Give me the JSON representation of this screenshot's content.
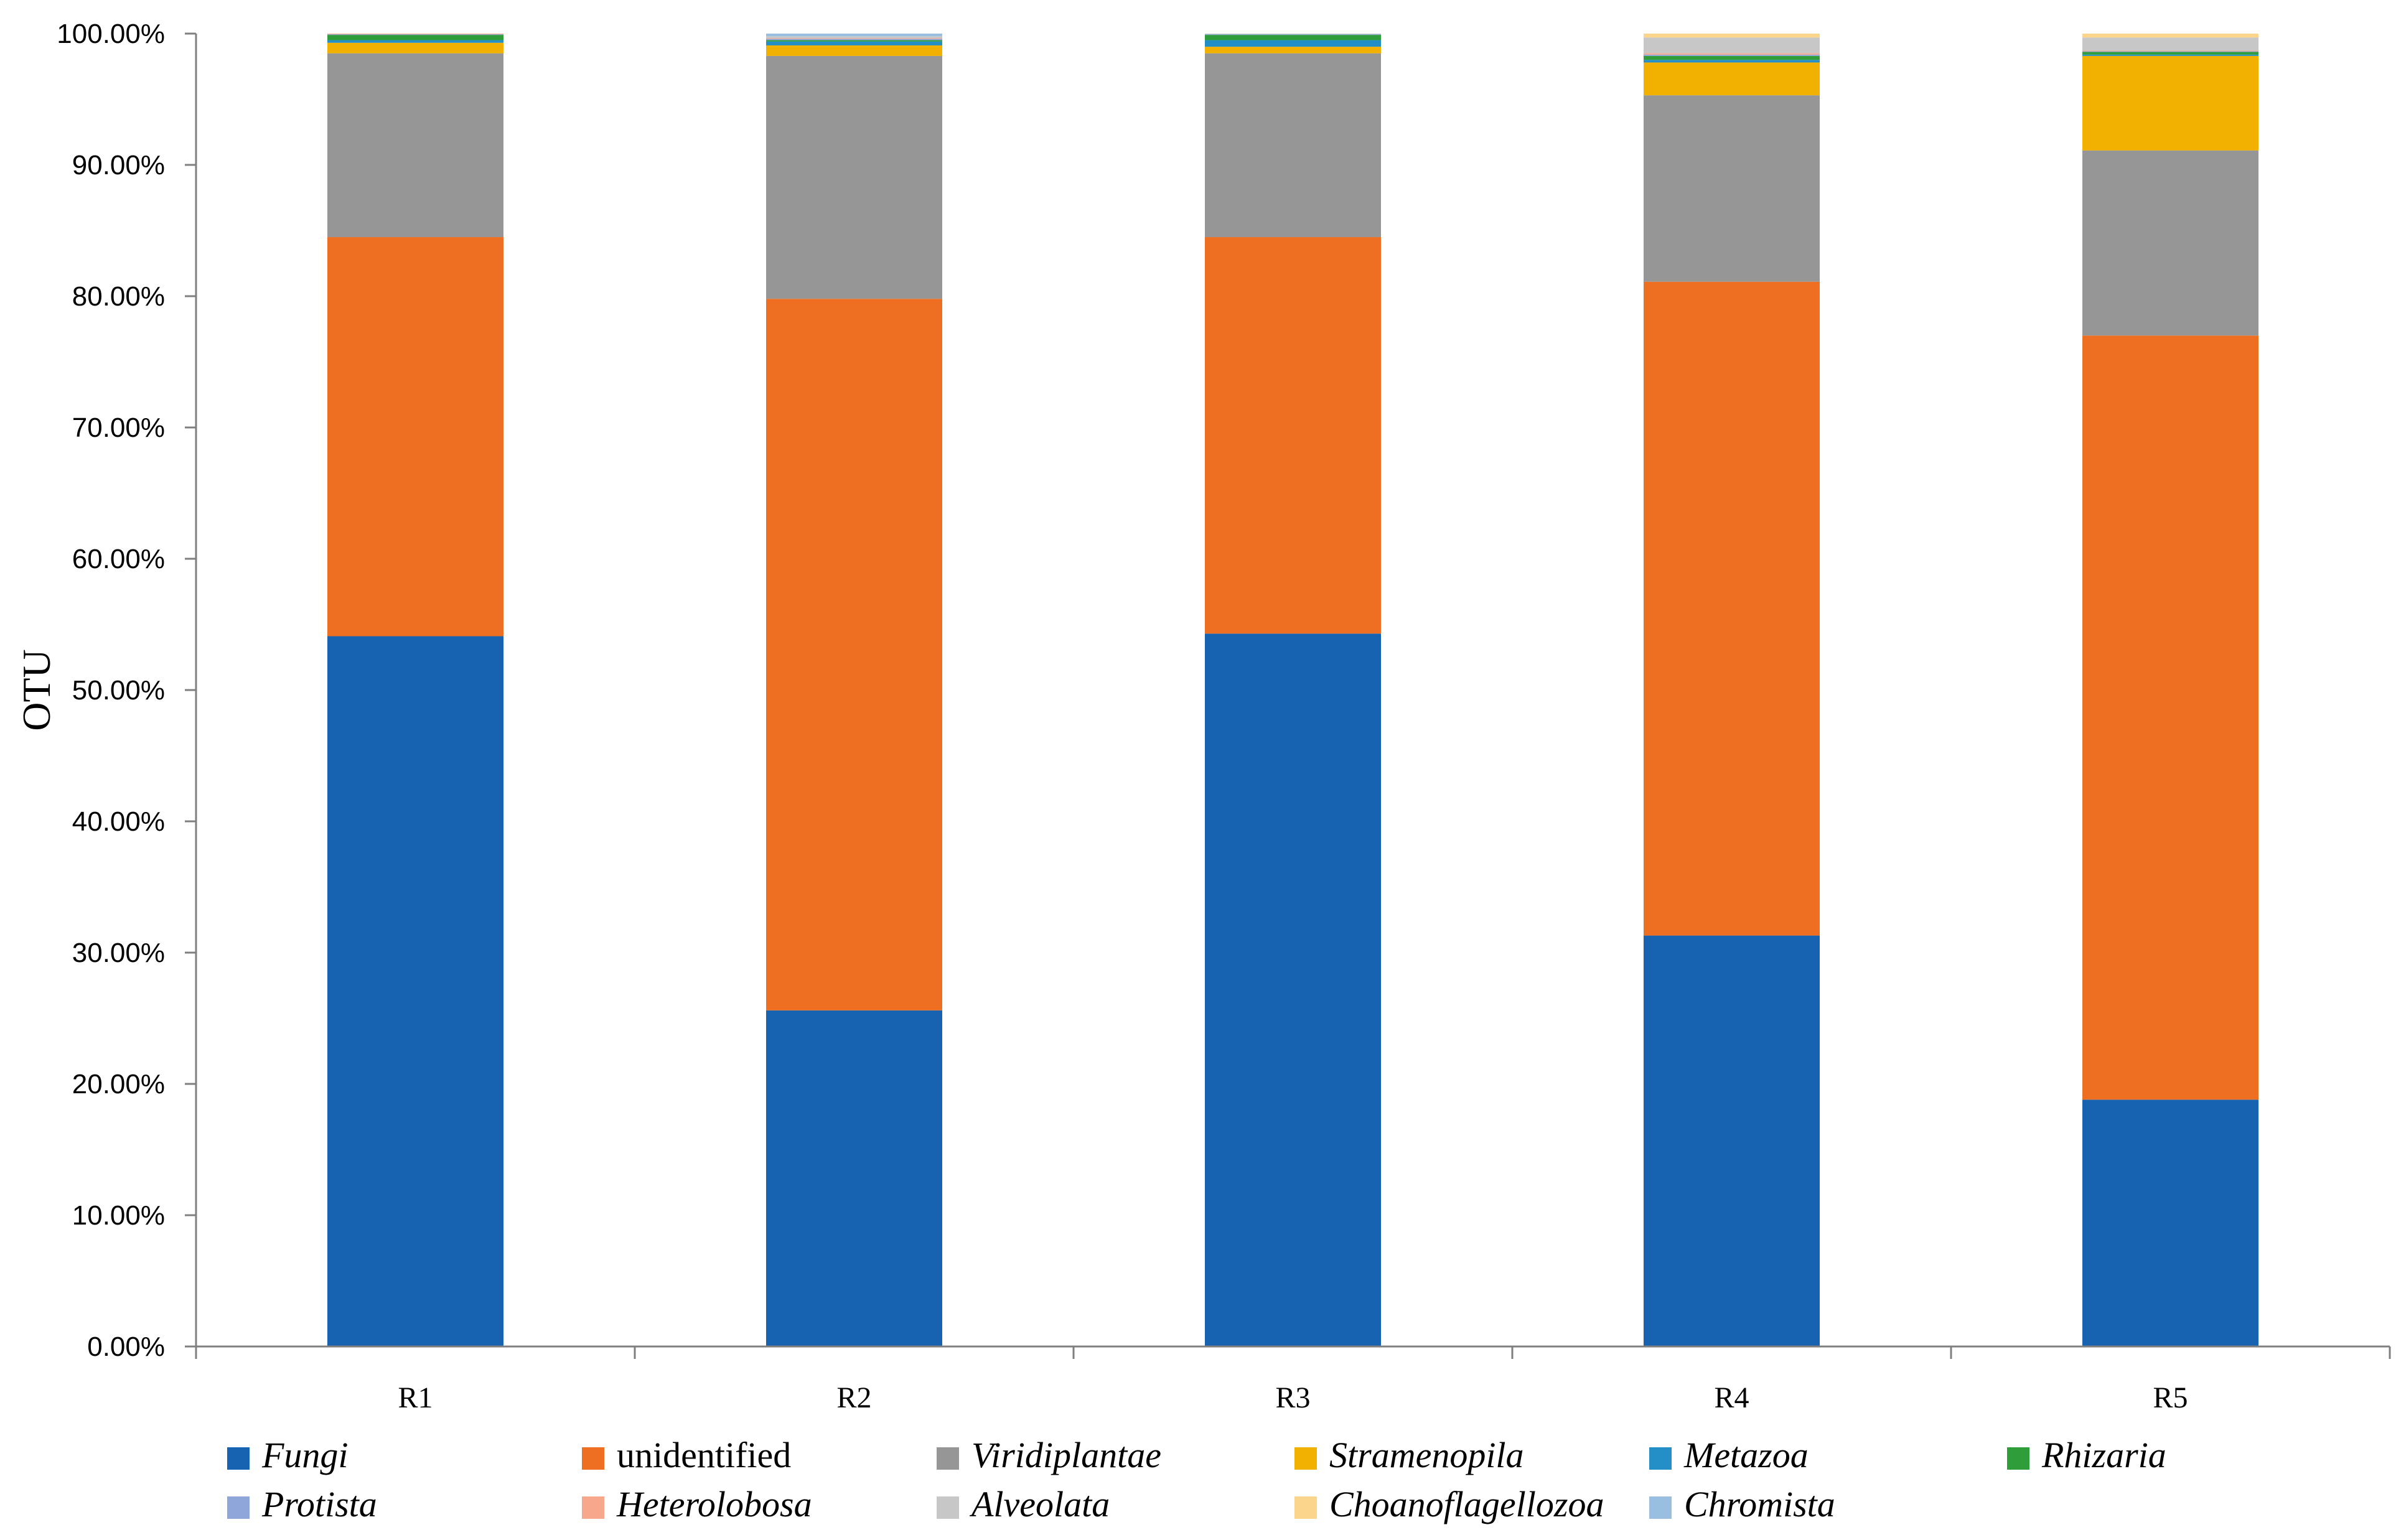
{
  "chart_data": {
    "type": "bar",
    "stacked": true,
    "categories": [
      "R1",
      "R2",
      "R3",
      "R4",
      "R5"
    ],
    "ylabel": "OTU",
    "xlabel": "",
    "title": "",
    "ylim": [
      0,
      100
    ],
    "ytick_labels": [
      "0.00%",
      "10.00%",
      "20.00%",
      "30.00%",
      "40.00%",
      "50.00%",
      "60.00%",
      "70.00%",
      "80.00%",
      "90.00%",
      "100.00%"
    ],
    "grid": false,
    "legend_position": "bottom",
    "series": [
      {
        "name": "Fungi",
        "italic": true,
        "color": "#1763B1",
        "values": [
          54.1,
          25.6,
          54.3,
          31.3,
          18.8
        ]
      },
      {
        "name": "unidentified",
        "italic": false,
        "color": "#EE6F21",
        "values": [
          30.4,
          54.2,
          30.2,
          49.8,
          58.2
        ]
      },
      {
        "name": "Viridiplantae",
        "italic": true,
        "color": "#969696",
        "values": [
          14.0,
          18.5,
          14.0,
          14.2,
          14.1
        ]
      },
      {
        "name": "Stramenopila",
        "italic": true,
        "color": "#F2B000",
        "values": [
          0.8,
          0.8,
          0.5,
          2.5,
          7.2
        ]
      },
      {
        "name": "Metazoa",
        "italic": true,
        "color": "#238FC6",
        "values": [
          0.2,
          0.3,
          0.5,
          0.2,
          0.1
        ]
      },
      {
        "name": "Rhizaria",
        "italic": true,
        "color": "#2F9E3A",
        "values": [
          0.4,
          0.1,
          0.4,
          0.3,
          0.2
        ]
      },
      {
        "name": "Protista",
        "italic": true,
        "color": "#8FA6DA",
        "values": [
          0.05,
          0.1,
          0.05,
          0.1,
          0.05
        ]
      },
      {
        "name": "Heterolobosa",
        "italic": true,
        "color": "#F7A78C",
        "values": [
          0.05,
          0.05,
          0.0,
          0.1,
          0.05
        ]
      },
      {
        "name": "Alveolata",
        "italic": true,
        "color": "#C7C7C7",
        "values": [
          0.0,
          0.15,
          0.05,
          1.2,
          1.0
        ]
      },
      {
        "name": "Choanoflagellozoa",
        "italic": true,
        "color": "#FBD58C",
        "values": [
          0.0,
          0.0,
          0.0,
          0.3,
          0.3
        ]
      },
      {
        "name": "Chromista",
        "italic": true,
        "color": "#98BEE0",
        "values": [
          0.0,
          0.2,
          0.0,
          0.0,
          0.0
        ]
      }
    ]
  }
}
